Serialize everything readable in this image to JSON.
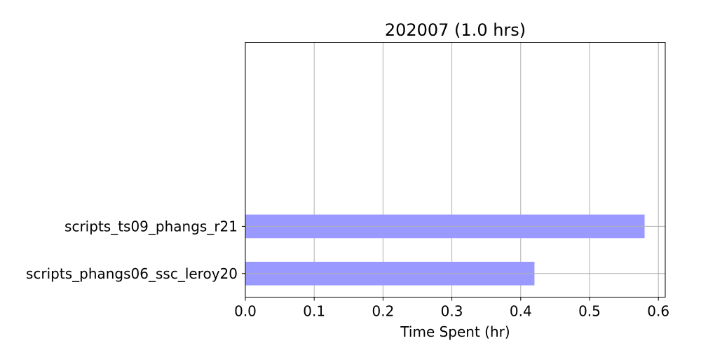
{
  "chart_data": {
    "type": "bar",
    "orientation": "horizontal",
    "title": "202007 (1.0 hrs)",
    "xlabel": "Time Spent (hr)",
    "ylabel": "",
    "categories": [
      "scripts_phangs06_ssc_leroy20",
      "scripts_ts09_phangs_r21"
    ],
    "values": [
      0.42,
      0.58
    ],
    "xlim": [
      0,
      0.61
    ],
    "xticks": [
      0.0,
      0.1,
      0.2,
      0.3,
      0.4,
      0.5,
      0.6
    ],
    "xtick_labels": [
      "0.0",
      "0.1",
      "0.2",
      "0.3",
      "0.4",
      "0.5",
      "0.6"
    ],
    "grid": true,
    "bar_color": "#9999ff",
    "grid_color": "#b0b0b0"
  }
}
